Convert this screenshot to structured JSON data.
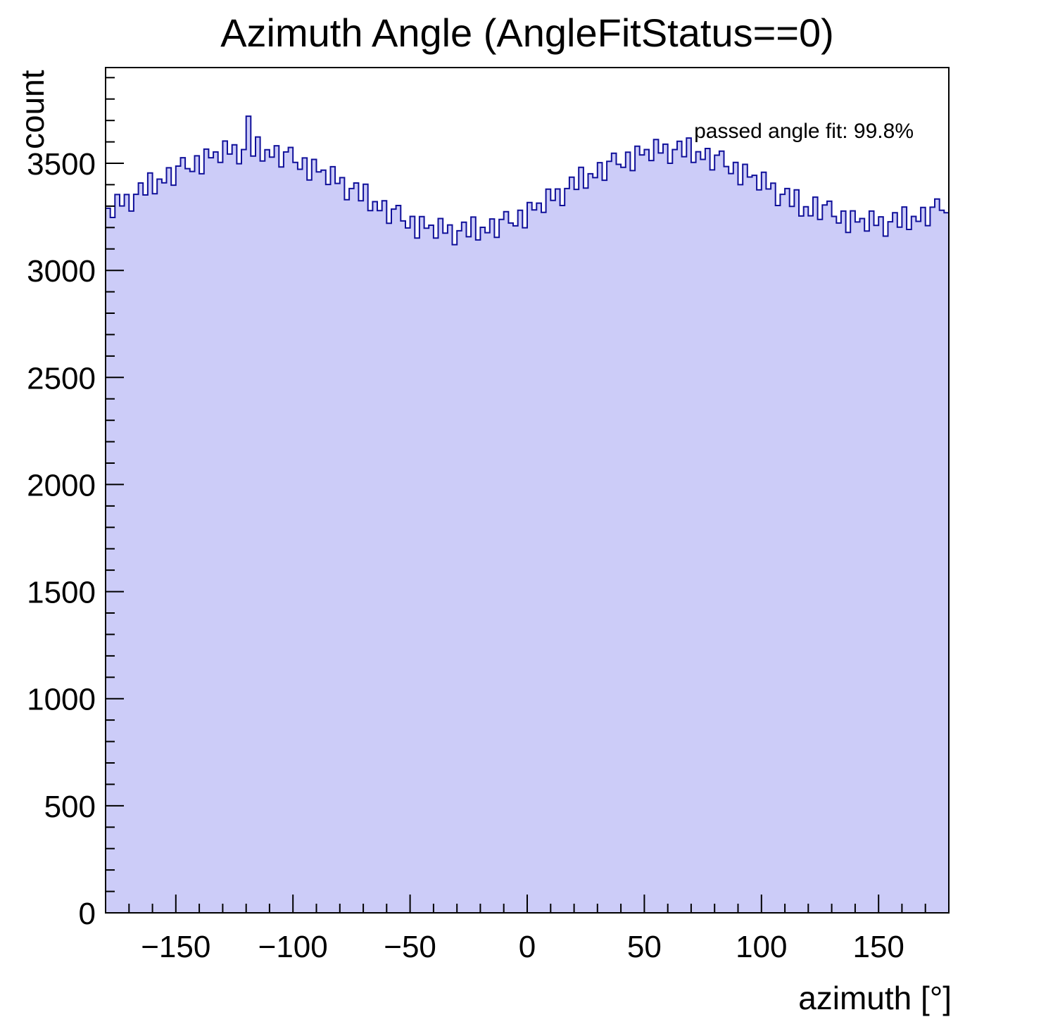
{
  "chart_data": {
    "type": "histogram",
    "title": "Azimuth Angle (AngleFitStatus==0)",
    "xlabel": "azimuth [°]",
    "ylabel": "count",
    "annotation": "passed angle fit: 99.8%",
    "xlim": [
      -180,
      180
    ],
    "ylim": [
      0,
      3947
    ],
    "x_start": -180,
    "bin_width": 2,
    "x_axis": {
      "tick_values": [
        -150,
        -100,
        -50,
        0,
        50,
        100,
        150
      ],
      "tick_labels": [
        "−150",
        "−100",
        "−50",
        "0",
        "50",
        "100",
        "150"
      ],
      "minor_step": 10,
      "major_step": 50
    },
    "y_axis": {
      "tick_values": [
        0,
        500,
        1000,
        1500,
        2000,
        2500,
        3000,
        3500
      ],
      "tick_labels": [
        "0",
        "500",
        "1000",
        "1500",
        "2000",
        "2500",
        "3000",
        "3500"
      ],
      "minor_step": 100,
      "major_step": 500
    },
    "colors": {
      "fill": "#ccccf8",
      "line": "#10109a",
      "axis": "#000000"
    },
    "values": [
      3290,
      3247,
      3354,
      3301,
      3354,
      3277,
      3355,
      3408,
      3352,
      3455,
      3358,
      3426,
      3409,
      3479,
      3398,
      3487,
      3526,
      3475,
      3462,
      3535,
      3451,
      3566,
      3526,
      3553,
      3504,
      3604,
      3543,
      3586,
      3498,
      3564,
      3720,
      3534,
      3623,
      3511,
      3563,
      3529,
      3582,
      3483,
      3553,
      3574,
      3504,
      3472,
      3525,
      3422,
      3518,
      3460,
      3468,
      3401,
      3484,
      3406,
      3433,
      3330,
      3382,
      3408,
      3325,
      3402,
      3279,
      3321,
      3279,
      3325,
      3220,
      3286,
      3303,
      3231,
      3198,
      3252,
      3151,
      3251,
      3197,
      3211,
      3151,
      3242,
      3174,
      3212,
      3120,
      3185,
      3225,
      3157,
      3249,
      3142,
      3201,
      3176,
      3240,
      3154,
      3238,
      3274,
      3221,
      3208,
      3281,
      3199,
      3317,
      3282,
      3314,
      3271,
      3379,
      3327,
      3380,
      3303,
      3382,
      3435,
      3378,
      3481,
      3384,
      3451,
      3433,
      3503,
      3421,
      3509,
      3547,
      3495,
      3481,
      3552,
      3466,
      3580,
      3539,
      3564,
      3513,
      3611,
      3548,
      3589,
      3500,
      3564,
      3603,
      3531,
      3618,
      3504,
      3554,
      3518,
      3569,
      3469,
      3538,
      3557,
      3485,
      3452,
      3504,
      3400,
      3495,
      3436,
      3444,
      3376,
      3458,
      3380,
      3407,
      3303,
      3355,
      3382,
      3299,
      3376,
      3254,
      3297,
      3255,
      3342,
      3238,
      3305,
      3323,
      3252,
      3221,
      3277,
      3177,
      3278,
      3226,
      3242,
      3184,
      3277,
      3210,
      3250,
      3160,
      3227,
      3269,
      3202,
      3296,
      3191,
      3252,
      3229,
      3294,
      3209,
      3295,
      3333,
      3281,
      3269
    ]
  }
}
